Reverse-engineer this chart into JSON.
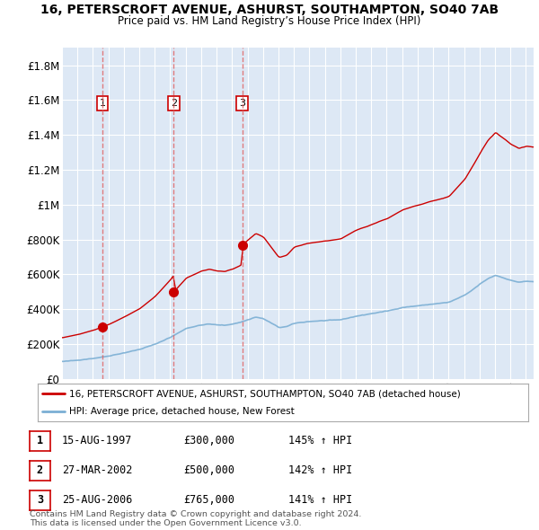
{
  "title": "16, PETERSCROFT AVENUE, ASHURST, SOUTHAMPTON, SO40 7AB",
  "subtitle": "Price paid vs. HM Land Registry’s House Price Index (HPI)",
  "ylim": [
    0,
    1900000
  ],
  "yticks": [
    0,
    200000,
    400000,
    600000,
    800000,
    1000000,
    1200000,
    1400000,
    1600000,
    1800000
  ],
  "ytick_labels": [
    "£0",
    "£200K",
    "£400K",
    "£600K",
    "£800K",
    "£1M",
    "£1.2M",
    "£1.4M",
    "£1.6M",
    "£1.8M"
  ],
  "hpi_color": "#7bafd4",
  "price_color": "#cc0000",
  "dashed_color": "#e06060",
  "plot_bg_color": "#dde8f5",
  "transactions": [
    {
      "label": "1",
      "date": "15-AUG-1997",
      "price": 300000,
      "year": 1997.62,
      "hpi_pct": "145% ↑ HPI"
    },
    {
      "label": "2",
      "date": "27-MAR-2002",
      "price": 500000,
      "year": 2002.23,
      "hpi_pct": "142% ↑ HPI"
    },
    {
      "label": "3",
      "date": "25-AUG-2006",
      "price": 765000,
      "year": 2006.65,
      "hpi_pct": "141% ↑ HPI"
    }
  ],
  "legend_label1": "16, PETERSCROFT AVENUE, ASHURST, SOUTHAMPTON, SO40 7AB (detached house)",
  "legend_label2": "HPI: Average price, detached house, New Forest",
  "footer1": "Contains HM Land Registry data © Crown copyright and database right 2024.",
  "footer2": "This data is licensed under the Open Government Licence v3.0.",
  "xmin": 1995,
  "xmax": 2025.5
}
